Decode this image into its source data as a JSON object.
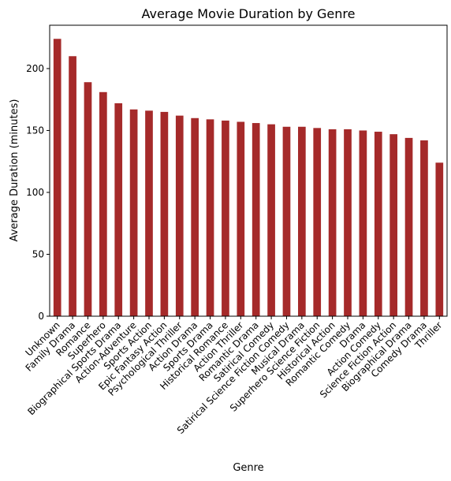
{
  "chart_data": {
    "type": "bar",
    "title": "Average Movie Duration by Genre",
    "xlabel": "Genre",
    "ylabel": "Average Duration (minutes)",
    "categories": [
      "Unknown",
      "Family Drama",
      "Romance",
      "Superhero",
      "Biographical Sports Drama",
      "Action-Adventure",
      "Sports Action",
      "Epic Fantasy Action",
      "Psychological Thriller",
      "Action Drama",
      "Sports Drama",
      "Historical Romance",
      "Action Thriller",
      "Romantic Drama",
      "Satirical Comedy",
      "Satirical Science Fiction Comedy",
      "Musical Drama",
      "Superhero Science Fiction",
      "Historical Action",
      "Romantic Comedy",
      "Drama",
      "Action Comedy",
      "Science Fiction Action",
      "Biographical Drama",
      "Comedy Drama",
      "Thriller"
    ],
    "values": [
      224,
      210,
      189,
      181,
      172,
      167,
      166,
      165,
      162,
      160,
      159,
      158,
      157,
      156,
      155,
      153,
      153,
      152,
      151,
      151,
      150,
      149,
      147,
      144,
      142,
      124
    ],
    "ylim": [
      0,
      235
    ],
    "yticks": [
      0,
      50,
      100,
      150,
      200
    ],
    "bar_color": "#a52a2a",
    "grid": false,
    "legend": "none"
  }
}
